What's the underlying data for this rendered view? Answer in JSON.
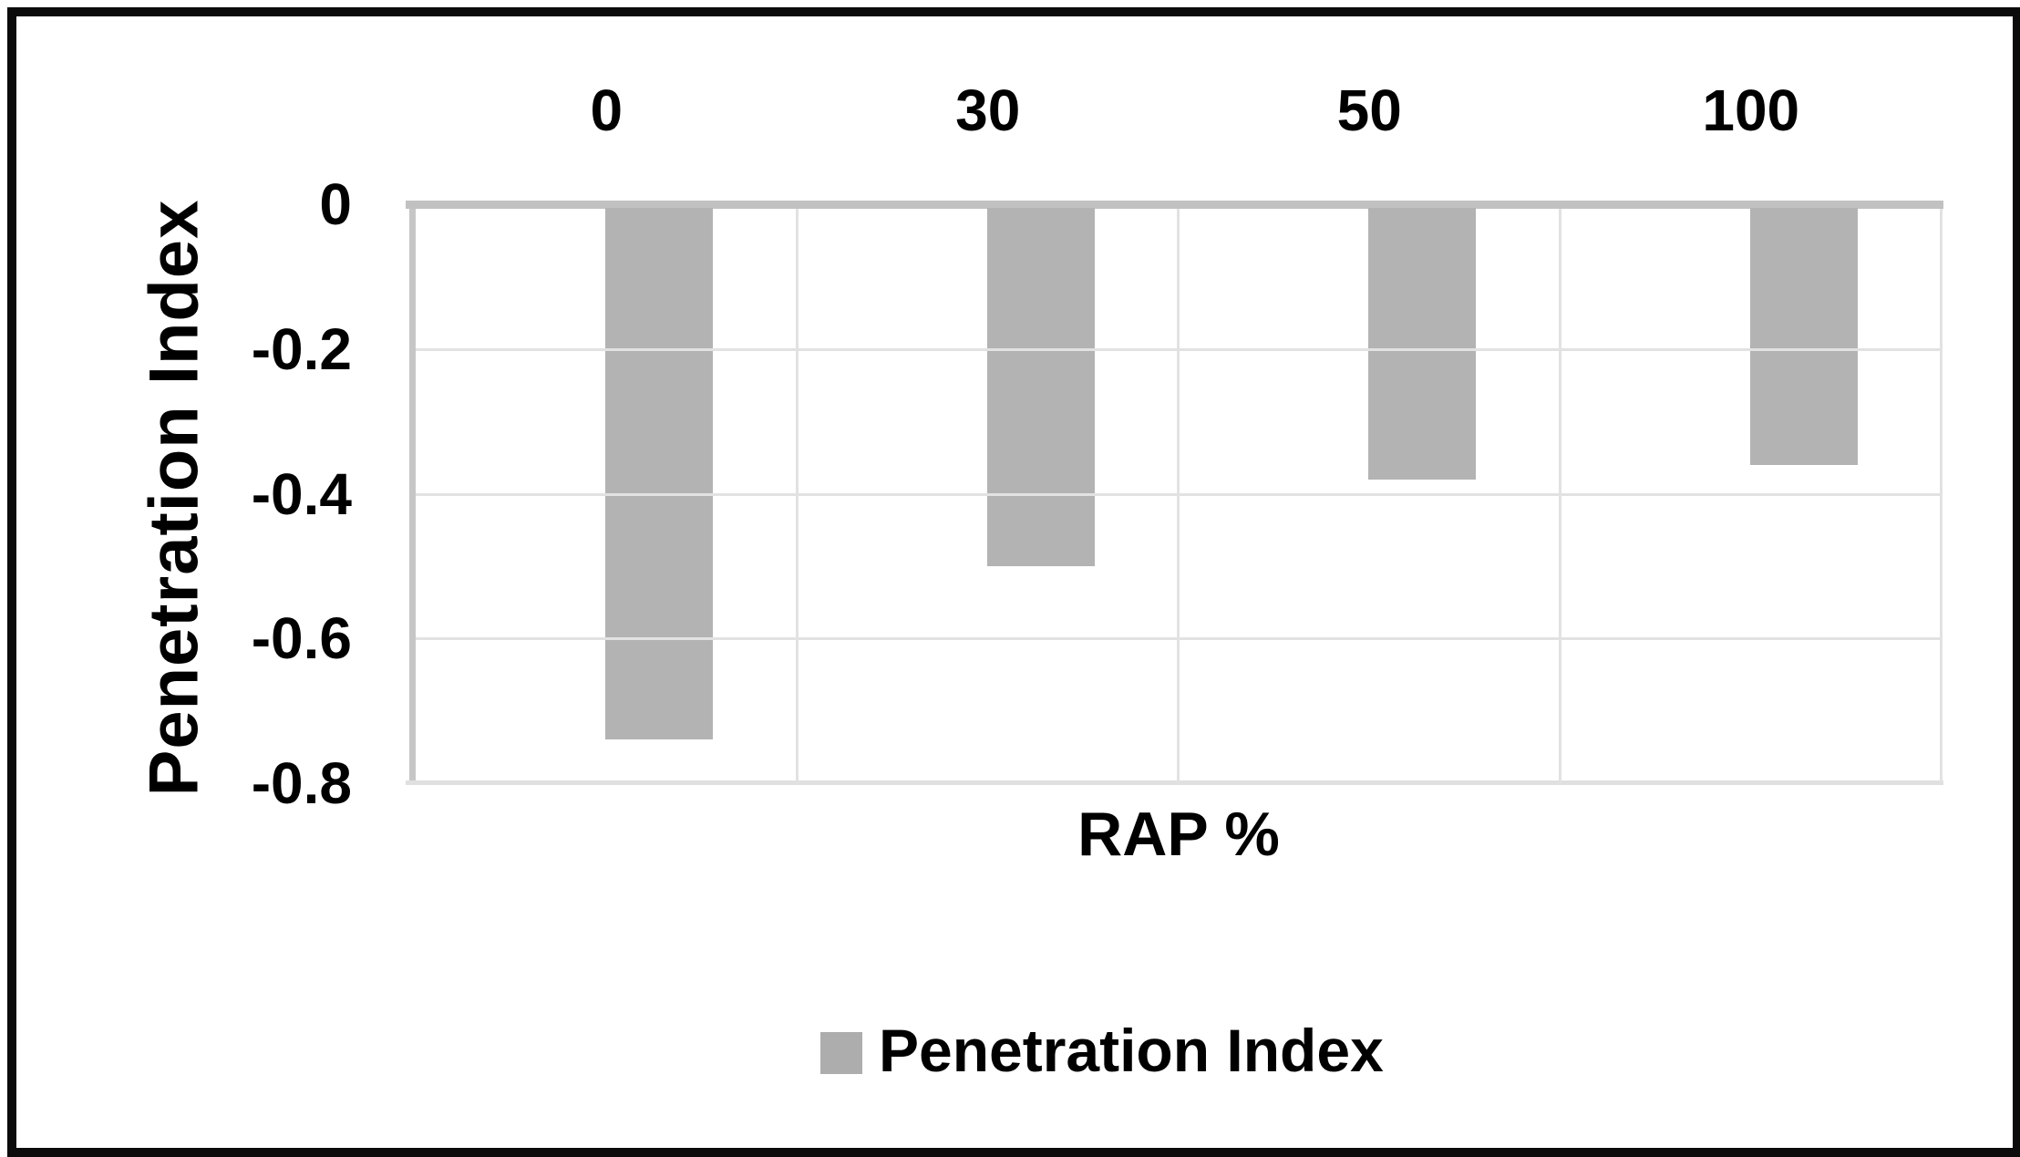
{
  "chart_data": {
    "type": "bar",
    "categories": [
      "0",
      "30",
      "50",
      "100"
    ],
    "values": [
      -0.74,
      -0.5,
      -0.38,
      -0.36
    ],
    "series": [
      {
        "name": "Penetration Index",
        "values": [
          -0.74,
          -0.5,
          -0.38,
          -0.36
        ]
      }
    ],
    "title": "",
    "xlabel": "RAP %",
    "ylabel": "Penetration Index",
    "ylim": [
      -0.8,
      0
    ],
    "x_axis_position": "top",
    "ytick_labels": [
      "0",
      "-0.2",
      "-0.4",
      "-0.6",
      "-0.8"
    ],
    "ytick_values": [
      0,
      -0.2,
      -0.4,
      -0.6,
      -0.8
    ],
    "grid": true,
    "legend_position": "bottom"
  },
  "legend": {
    "items": [
      {
        "label": "Penetration Index",
        "swatch_color": "#adadad"
      }
    ]
  },
  "colors": {
    "bar_fill": "#b3b3b3",
    "zero_axis_line": "#c1c1c1",
    "gridline": "#e2e2e2",
    "plot_border": "#c6c6c6",
    "frame_border": "#0b0b0b",
    "text": "#000000",
    "background": "#ffffff"
  }
}
